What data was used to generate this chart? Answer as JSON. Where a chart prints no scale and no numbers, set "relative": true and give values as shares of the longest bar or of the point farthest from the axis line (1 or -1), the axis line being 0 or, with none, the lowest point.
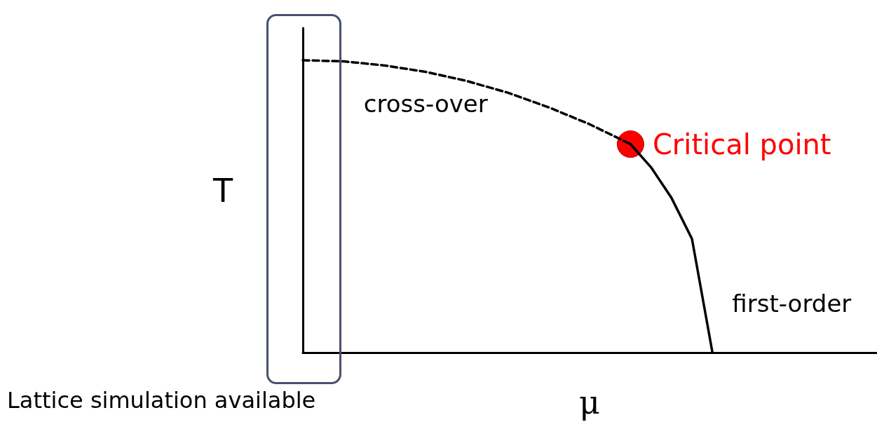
{
  "chart_data": {
    "type": "line",
    "xlabel": "μ",
    "ylabel": "T",
    "relative": true,
    "tick_labels": false,
    "marker": "none",
    "categories": [
      null,
      null,
      null,
      null,
      null,
      null,
      null,
      null,
      null,
      null,
      null,
      null,
      null,
      null,
      null,
      null,
      null,
      null,
      null,
      null,
      null,
      null,
      null,
      null,
      null,
      null,
      null,
      null,
      null
    ],
    "series": [
      {
        "name": "cross-over",
        "color": "#000000",
        "line_style": "dashed",
        "values": [
          1.0,
          null,
          0.996,
          null,
          0.982,
          null,
          0.96,
          null,
          0.929,
          null,
          0.889,
          null,
          0.839,
          null,
          0.781,
          null,
          0.713,
          null,
          null,
          null,
          null,
          null,
          null,
          null,
          null,
          null,
          null,
          null,
          null
        ]
      },
      {
        "name": "first-order",
        "color": "#000000",
        "line_style": "solid",
        "values": [
          null,
          null,
          null,
          null,
          null,
          null,
          null,
          null,
          null,
          null,
          null,
          null,
          null,
          null,
          null,
          null,
          0.713,
          0.634,
          0.529,
          0.389,
          0.0,
          null,
          null,
          null,
          null,
          null,
          null,
          null,
          null
        ]
      },
      {
        "name": "Critical point",
        "marker": "circle",
        "color": "#ff0000",
        "values": [
          null,
          null,
          null,
          null,
          null,
          null,
          null,
          null,
          null,
          null,
          null,
          null,
          null,
          null,
          null,
          null,
          0.713,
          null,
          null,
          null,
          null,
          null,
          null,
          null,
          null,
          null,
          null,
          null,
          null
        ]
      }
    ],
    "annotations": [
      "Lattice simulation available"
    ]
  }
}
